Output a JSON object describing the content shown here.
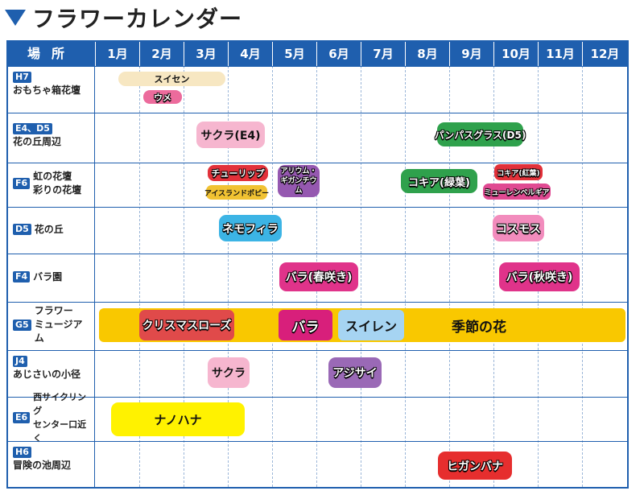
{
  "title": "フラワーカレンダー",
  "header": {
    "location": "場所",
    "months": [
      "1月",
      "2月",
      "3月",
      "4月",
      "5月",
      "6月",
      "7月",
      "8月",
      "9月",
      "10月",
      "11月",
      "12月"
    ]
  },
  "rows": [
    {
      "code": "H7",
      "name": [
        "おもちゃ箱花壇"
      ]
    },
    {
      "code": "E4、D5",
      "name": [
        "花の丘周辺"
      ]
    },
    {
      "code": "F6",
      "name": [
        "虹の花壇",
        "彩りの花壇"
      ]
    },
    {
      "code": "D5",
      "name": [
        "花の丘"
      ]
    },
    {
      "code": "F4",
      "name": [
        "バラ園"
      ]
    },
    {
      "code": "G5",
      "name": [
        "フラワー",
        "ミュージアム"
      ]
    },
    {
      "code": "J4",
      "name": [
        "あじさいの小径"
      ]
    },
    {
      "code": "E6",
      "name": [
        "西サイクリング",
        "センター口近く"
      ]
    },
    {
      "code": "H6",
      "name": [
        "冒険の池周辺"
      ]
    }
  ],
  "flowers": [
    {
      "label": "スイセン",
      "color": "#f7e7c2"
    },
    {
      "label": "ウメ",
      "color": "#ec6b9c"
    },
    {
      "label": "サクラ(E4)",
      "color": "#f6b6cf"
    },
    {
      "label": "パンパスグラス(D5)",
      "color": "#2fa14c"
    },
    {
      "label": "チューリップ",
      "color": "#e2313a"
    },
    {
      "label": "アイスランドポピー",
      "color": "#f1c232"
    },
    {
      "label": "アリウム・ギガンチウム",
      "color": "#9558b0"
    },
    {
      "label": "コキア(緑葉)",
      "color": "#2fa14c"
    },
    {
      "label": "コキア(紅葉)",
      "color": "#e2313a"
    },
    {
      "label": "ミューレンベルギア",
      "color": "#e04a92"
    },
    {
      "label": "ネモフィラ",
      "color": "#3cb4e5"
    },
    {
      "label": "コスモス",
      "color": "#f28cbd"
    },
    {
      "label": "バラ(春咲き)",
      "color": "#e0338a"
    },
    {
      "label": "バラ(秋咲き)",
      "color": "#e0338a"
    },
    {
      "label": "季節の花",
      "color": "#f9c800"
    },
    {
      "label": "クリスマスローズ",
      "color": "#e04a4a"
    },
    {
      "label": "バラ",
      "color": "#d81f7b"
    },
    {
      "label": "スイレン",
      "color": "#a6d4f2"
    },
    {
      "label": "サクラ",
      "color": "#f6b6cf"
    },
    {
      "label": "アジサイ",
      "color": "#9a69b6"
    },
    {
      "label": "ナノハナ",
      "color": "#fff200"
    },
    {
      "label": "ヒガンバナ",
      "color": "#e62e2e"
    }
  ]
}
